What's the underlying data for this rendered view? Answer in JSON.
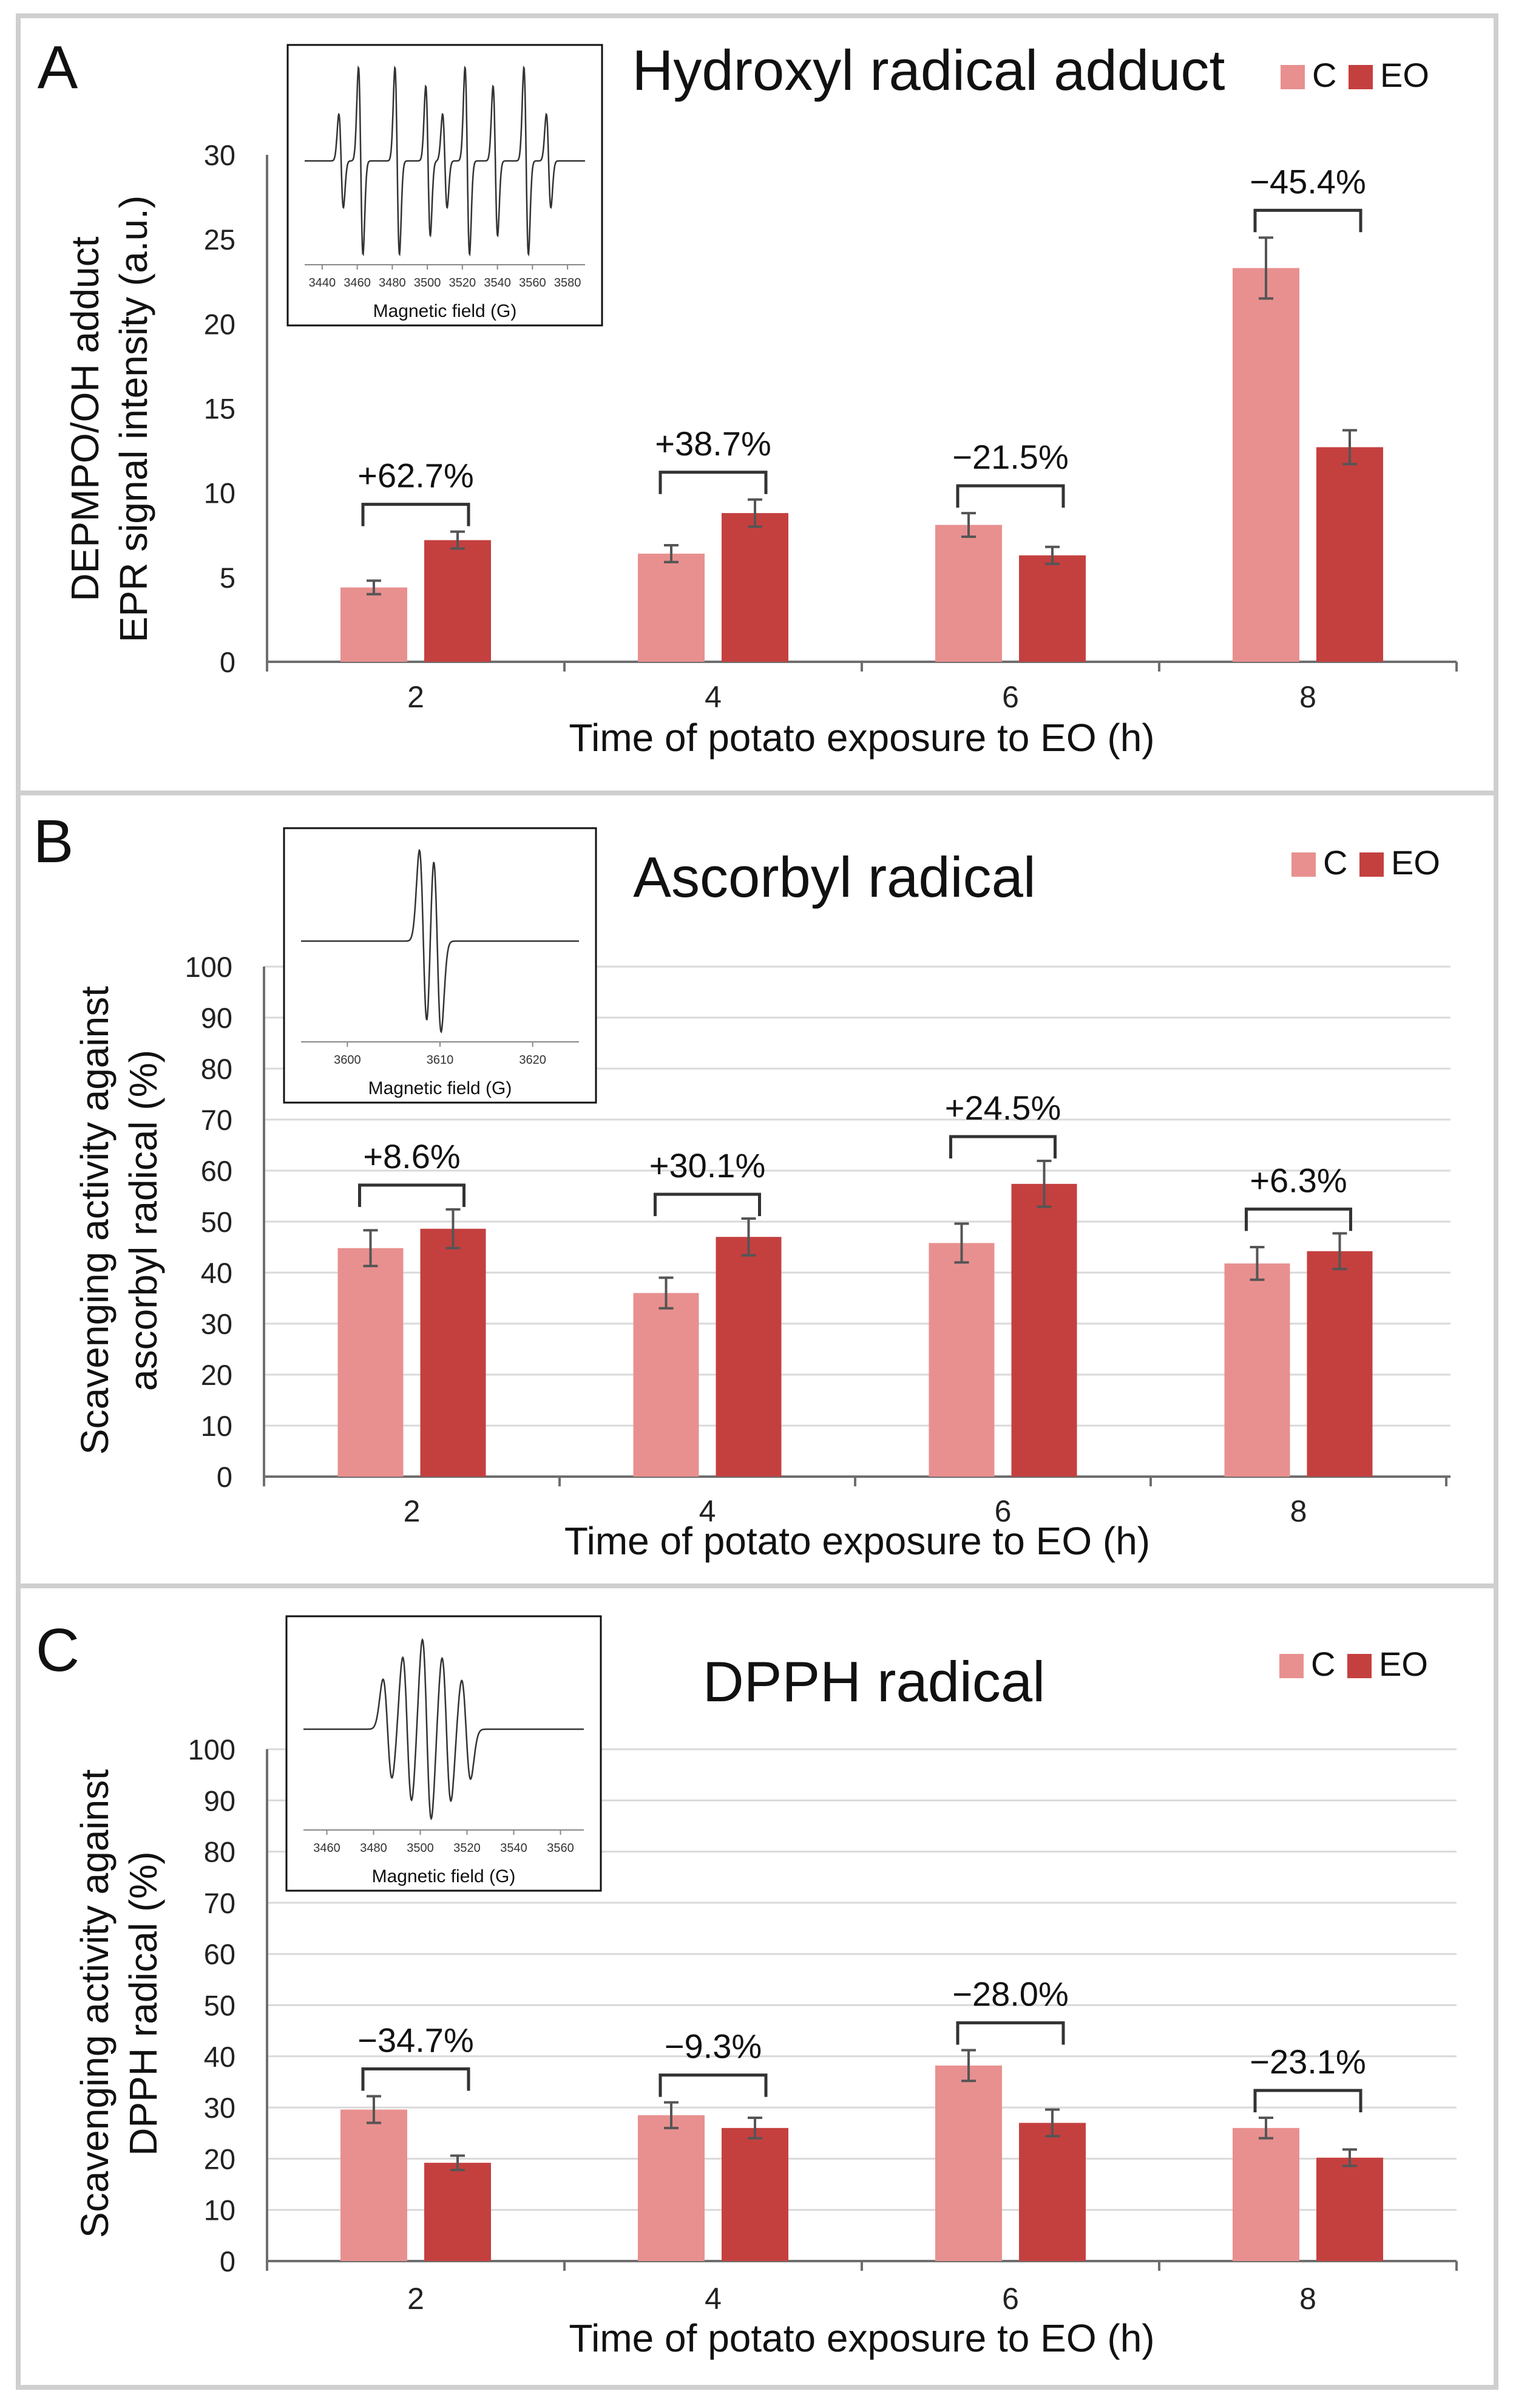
{
  "colors": {
    "C": "#e8908f",
    "EO": "#c4403f",
    "grid": "#d9d9d9",
    "axis": "#6e6e6e",
    "frame": "#cfcfcf",
    "error": "#555555"
  },
  "chart_data": [
    {
      "type": "bar",
      "panel_letter": "A",
      "title": "Hydroxyl radical adduct",
      "xlabel": "Time of potato exposure to EO (h)",
      "ylabel": [
        "DEPMPO/OH adduct",
        "EPR signal intensity (a.u.)"
      ],
      "categories": [
        "2",
        "4",
        "6",
        "8"
      ],
      "ylim": [
        0,
        30
      ],
      "yticks": [
        "0",
        "5",
        "10",
        "15",
        "20",
        "25",
        "30"
      ],
      "grid": false,
      "legend_position": "top-right",
      "series": [
        {
          "name": "C",
          "values": [
            4.4,
            6.4,
            8.1,
            23.3
          ],
          "errors": [
            0.4,
            0.5,
            0.7,
            1.8
          ]
        },
        {
          "name": "EO",
          "values": [
            7.2,
            8.8,
            6.3,
            12.7
          ],
          "errors": [
            0.5,
            0.8,
            0.5,
            1.0
          ]
        }
      ],
      "annotations": [
        "+62.7%",
        "+38.7%",
        "−21.5%",
        "−45.4%"
      ],
      "inset": {
        "xlabel": "Magnetic field (G)",
        "xticks": [
          "3440",
          "3460",
          "3480",
          "3500",
          "3520",
          "3540",
          "3560",
          "3580"
        ],
        "spectrum": "hydroxyl"
      }
    },
    {
      "type": "bar",
      "panel_letter": "B",
      "title": "Ascorbyl radical",
      "xlabel": "Time of potato exposure to EO (h)",
      "ylabel": [
        "Scavenging activity against",
        "ascorbyl radical (%)"
      ],
      "categories": [
        "2",
        "4",
        "6",
        "8"
      ],
      "ylim": [
        0,
        100
      ],
      "yticks": [
        "0",
        "10",
        "20",
        "30",
        "40",
        "50",
        "60",
        "70",
        "80",
        "90",
        "100"
      ],
      "grid": true,
      "legend_position": "top-right",
      "series": [
        {
          "name": "C",
          "values": [
            44.8,
            36.0,
            45.8,
            41.8
          ],
          "errors": [
            3.5,
            3.0,
            3.8,
            3.2
          ]
        },
        {
          "name": "EO",
          "values": [
            48.6,
            47.0,
            57.4,
            44.2
          ],
          "errors": [
            3.8,
            3.6,
            4.5,
            3.5
          ]
        }
      ],
      "annotations": [
        "+8.6%",
        "+30.1%",
        "+24.5%",
        "+6.3%"
      ],
      "inset": {
        "xlabel": "Magnetic field (G)",
        "xticks": [
          "3600",
          "3610",
          "3620"
        ],
        "spectrum": "ascorbyl"
      }
    },
    {
      "type": "bar",
      "panel_letter": "C",
      "title": "DPPH radical",
      "xlabel": "Time of potato exposure to EO (h)",
      "ylabel": [
        "Scavenging activity against",
        "DPPH radical (%)"
      ],
      "categories": [
        "2",
        "4",
        "6",
        "8"
      ],
      "ylim": [
        0,
        100
      ],
      "yticks": [
        "0",
        "10",
        "20",
        "30",
        "40",
        "50",
        "60",
        "70",
        "80",
        "90",
        "100"
      ],
      "grid": true,
      "legend_position": "top-right",
      "series": [
        {
          "name": "C",
          "values": [
            29.6,
            28.5,
            38.2,
            26.0
          ],
          "errors": [
            2.6,
            2.5,
            3.0,
            2.0
          ]
        },
        {
          "name": "EO",
          "values": [
            19.2,
            26.0,
            27.0,
            20.2
          ],
          "errors": [
            1.4,
            2.0,
            2.6,
            1.6
          ]
        }
      ],
      "annotations": [
        "−34.7%",
        "−9.3%",
        "−28.0%",
        "−23.1%"
      ],
      "inset": {
        "xlabel": "Magnetic field (G)",
        "xticks": [
          "3460",
          "3480",
          "3500",
          "3520",
          "3540",
          "3560"
        ],
        "spectrum": "dpph"
      }
    }
  ]
}
